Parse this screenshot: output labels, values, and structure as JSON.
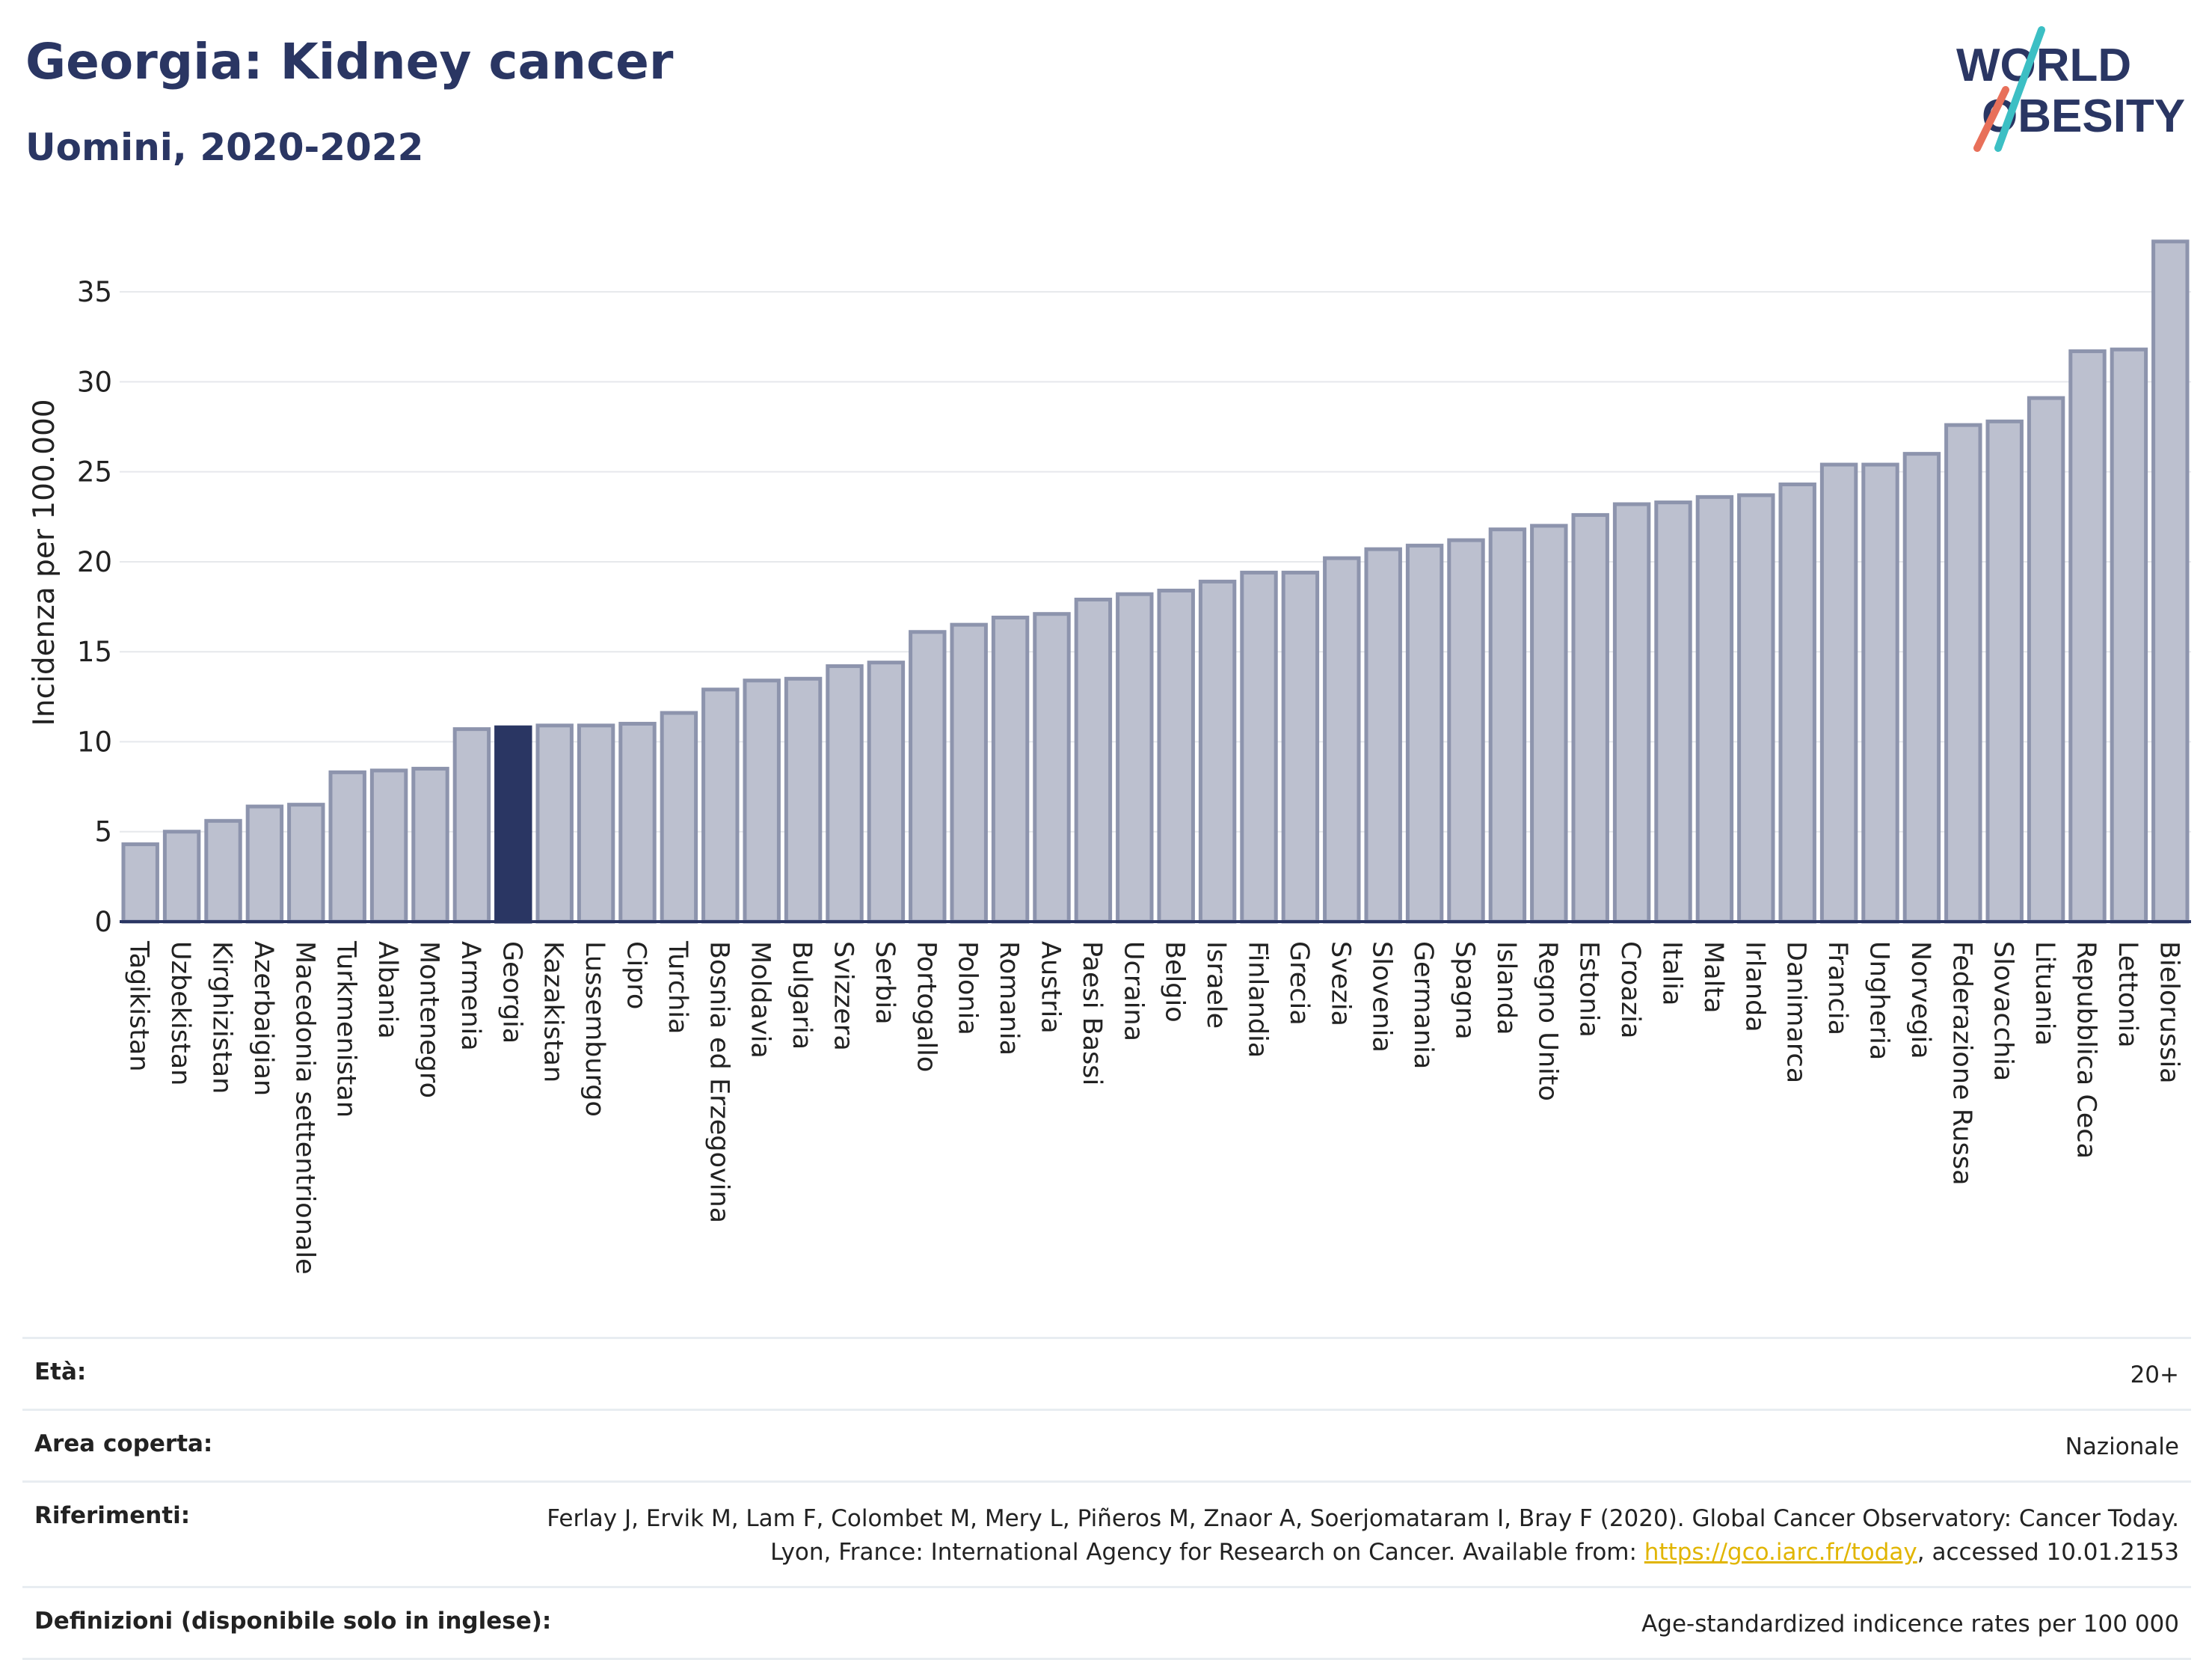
{
  "title": "Georgia: Kidney cancer",
  "subtitle": "Uomini, 2020-2022",
  "logo": {
    "line1": "WORLD",
    "line2": "OBESITY",
    "colors": {
      "text": "#2a3663",
      "slash_top": "#3cbfc4",
      "slash_bottom": "#e8705a"
    }
  },
  "colors": {
    "bar": "#bcc0cf",
    "bar_border": "#8d94ad",
    "highlight": "#2a3663",
    "grid": "#e6e8ec",
    "axis": "#2a3663"
  },
  "chart_data": {
    "type": "bar",
    "ylabel": "Incidenza per 100.000",
    "ylim": [
      0,
      38
    ],
    "yticks": [
      0,
      5,
      10,
      15,
      20,
      25,
      30,
      35
    ],
    "grid": true,
    "highlight": "Georgia",
    "categories": [
      "Tagikistan",
      "Uzbekistan",
      "Kirghizistan",
      "Azerbaigian",
      "Macedonia settentrionale",
      "Turkmenistan",
      "Albania",
      "Montenegro",
      "Armenia",
      "Georgia",
      "Kazakistan",
      "Lussemburgo",
      "Cipro",
      "Turchia",
      "Bosnia ed Erzegovina",
      "Moldavia",
      "Bulgaria",
      "Svizzera",
      "Serbia",
      "Portogallo",
      "Polonia",
      "Romania",
      "Austria",
      "Paesi Bassi",
      "Ucraina",
      "Belgio",
      "Israele",
      "Finlandia",
      "Grecia",
      "Svezia",
      "Slovenia",
      "Germania",
      "Spagna",
      "Islanda",
      "Regno Unito",
      "Estonia",
      "Croazia",
      "Italia",
      "Malta",
      "Irlanda",
      "Danimarca",
      "Francia",
      "Ungheria",
      "Norvegia",
      "Federazione Russa",
      "Slovacchia",
      "Lituania",
      "Repubblica Ceca",
      "Lettonia",
      "Bielorussia"
    ],
    "values": [
      4.3,
      5.0,
      5.6,
      6.4,
      6.5,
      8.3,
      8.4,
      8.5,
      10.7,
      10.8,
      10.9,
      10.9,
      11.0,
      11.6,
      12.9,
      13.4,
      13.5,
      14.2,
      14.4,
      16.1,
      16.5,
      16.9,
      17.1,
      17.9,
      18.2,
      18.4,
      18.9,
      19.4,
      19.4,
      20.2,
      20.7,
      20.9,
      21.2,
      21.8,
      22.0,
      22.6,
      23.2,
      23.3,
      23.6,
      23.7,
      24.3,
      25.4,
      25.4,
      26.0,
      27.6,
      27.8,
      29.1,
      31.7,
      31.8,
      37.8
    ]
  },
  "info": [
    {
      "label": "Età:",
      "value": "20+"
    },
    {
      "label": "Area coperta:",
      "value": "Nazionale"
    },
    {
      "label": "Riferimenti:",
      "value": "Ferlay J, Ervik M, Lam F, Colombet M, Mery L, Piñeros M, Znaor A, Soerjomataram I, Bray F (2020). Global Cancer Observatory: Cancer Today. Lyon, France: International Agency for Research on Cancer. Available from: ",
      "link": "https://gco.iarc.fr/today",
      "value_after": ", accessed 10.01.2153"
    },
    {
      "label": "Definizioni (disponibile solo in inglese):",
      "value": "Age-standardized indicence rates per 100 000"
    }
  ]
}
